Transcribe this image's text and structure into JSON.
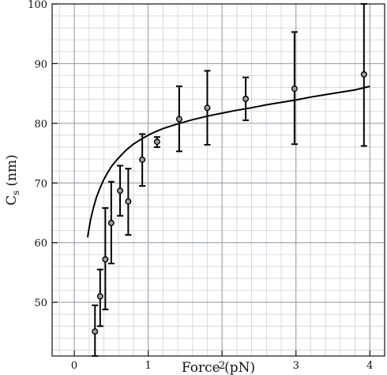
{
  "chart_data": {
    "type": "scatter",
    "title": "",
    "xlabel": "Force (pN)",
    "ylabel_main": "C",
    "ylabel_sub": "s",
    "ylabel_unit": "(nm)",
    "xlim": [
      -0.3,
      4.2
    ],
    "ylim": [
      41,
      100
    ],
    "x_ticks": [
      0,
      1,
      2,
      3,
      4
    ],
    "x_tick_labels": [
      "0",
      "1",
      "2",
      "3",
      "4"
    ],
    "y_ticks": [
      50,
      60,
      70,
      80,
      90,
      100
    ],
    "y_tick_labels": [
      "50",
      "60",
      "70",
      "80",
      "90",
      "100"
    ],
    "x_minor_step": 0.2,
    "y_minor_step": 2,
    "grid": true,
    "points": [
      {
        "x": 0.28,
        "y": 45.1,
        "ylow": 41.0,
        "yhigh": 49.5
      },
      {
        "x": 0.35,
        "y": 51.0,
        "ylow": 46.0,
        "yhigh": 55.5
      },
      {
        "x": 0.42,
        "y": 57.2,
        "ylow": 48.8,
        "yhigh": 65.8
      },
      {
        "x": 0.5,
        "y": 63.3,
        "ylow": 56.5,
        "yhigh": 70.2
      },
      {
        "x": 0.62,
        "y": 68.7,
        "ylow": 64.5,
        "yhigh": 72.9
      },
      {
        "x": 0.73,
        "y": 66.9,
        "ylow": 61.3,
        "yhigh": 72.4
      },
      {
        "x": 0.92,
        "y": 73.9,
        "ylow": 69.5,
        "yhigh": 78.2
      },
      {
        "x": 1.12,
        "y": 76.9,
        "ylow": 76.0,
        "yhigh": 77.7
      },
      {
        "x": 1.42,
        "y": 80.7,
        "ylow": 75.3,
        "yhigh": 86.2
      },
      {
        "x": 1.8,
        "y": 82.6,
        "ylow": 76.4,
        "yhigh": 88.8
      },
      {
        "x": 2.32,
        "y": 84.1,
        "ylow": 80.5,
        "yhigh": 87.7
      },
      {
        "x": 2.98,
        "y": 85.8,
        "ylow": 76.5,
        "yhigh": 95.3
      },
      {
        "x": 3.92,
        "y": 88.2,
        "ylow": 76.2,
        "yhigh": 100.0
      }
    ],
    "fit_curve": {
      "x": [
        0.18,
        0.22,
        0.26,
        0.3,
        0.35,
        0.4,
        0.45,
        0.5,
        0.55,
        0.6,
        0.7,
        0.8,
        0.9,
        1.0,
        1.1,
        1.2,
        1.4,
        1.6,
        1.8,
        2.0,
        2.2,
        2.4,
        2.6,
        2.8,
        3.0,
        3.2,
        3.4,
        3.6,
        3.8,
        4.0
      ],
      "y": [
        60.9,
        63.8,
        65.9,
        67.6,
        69.2,
        70.6,
        71.7,
        72.7,
        73.5,
        74.2,
        75.5,
        76.5,
        77.3,
        78.0,
        78.6,
        79.1,
        79.9,
        80.6,
        81.2,
        81.7,
        82.2,
        82.6,
        83.1,
        83.5,
        83.9,
        84.4,
        84.8,
        85.2,
        85.6,
        86.2
      ]
    }
  }
}
